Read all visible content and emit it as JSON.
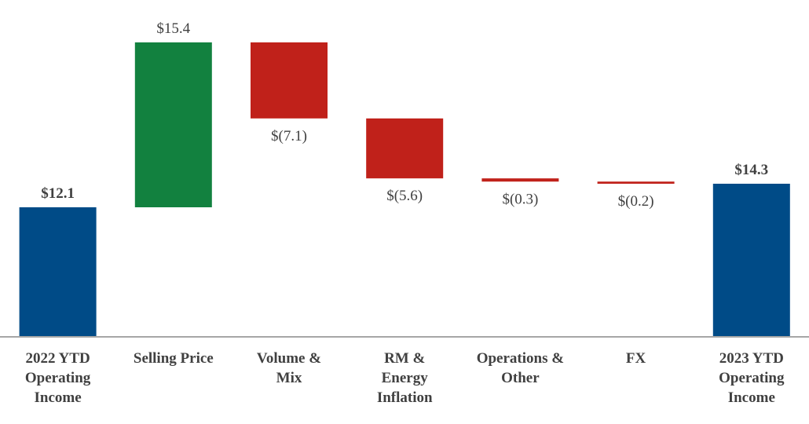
{
  "chart_data": {
    "type": "waterfall",
    "categories": [
      "2022 YTD\nOperating\nIncome",
      "Selling Price",
      "Volume &\nMix",
      "RM &\nEnergy\nInflation",
      "Operations &\nOther",
      "FX",
      "2023 YTD\nOperating\nIncome"
    ],
    "values": [
      12.1,
      15.4,
      -7.1,
      -5.6,
      -0.3,
      -0.2,
      14.3
    ],
    "value_labels": [
      "$12.1",
      "$15.4",
      "$(7.1)",
      "$(5.6)",
      "$(0.3)",
      "$(0.2)",
      "$14.3"
    ],
    "is_total": [
      true,
      false,
      false,
      false,
      false,
      false,
      true
    ],
    "colors": [
      "#004b87",
      "#12813f",
      "#c0211a",
      "#c0211a",
      "#c0211a",
      "#c0211a",
      "#004b87"
    ]
  }
}
